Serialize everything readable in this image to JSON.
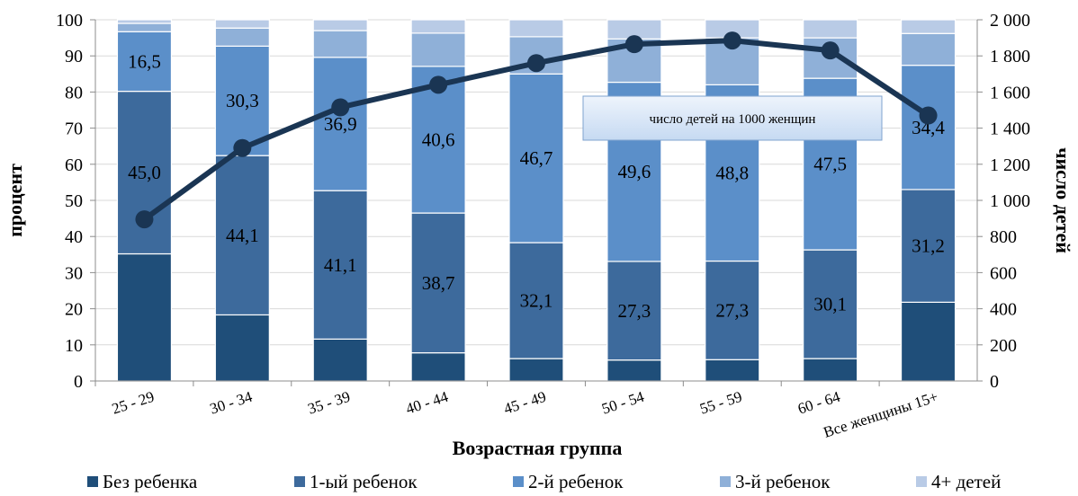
{
  "chart_data": {
    "type": "bar",
    "stacked": true,
    "categories": [
      "25 - 29",
      "30 - 34",
      "35 - 39",
      "40 - 44",
      "45 - 49",
      "50 - 54",
      "55 - 59",
      "60 - 64",
      "Все женщины 15+"
    ],
    "series": [
      {
        "name": "Без ребенка",
        "color": "#1f4e79",
        "values": [
          35.2,
          18.3,
          11.6,
          7.8,
          6.2,
          5.8,
          5.9,
          6.2,
          21.8
        ]
      },
      {
        "name": "1-ый ребенок",
        "color": "#3d6a9c",
        "values": [
          45.0,
          44.1,
          41.1,
          38.7,
          32.1,
          27.3,
          27.3,
          30.1,
          31.2
        ],
        "data_labels": [
          "45,0",
          "44,1",
          "41,1",
          "38,7",
          "32,1",
          "27,3",
          "27,3",
          "30,1",
          "31,2"
        ]
      },
      {
        "name": "2-й ребенок",
        "color": "#5b8fc9",
        "values": [
          16.5,
          30.3,
          36.9,
          40.6,
          46.7,
          49.6,
          48.8,
          47.5,
          34.4
        ],
        "data_labels": [
          "16,5",
          "30,3",
          "36,9",
          "40,6",
          "46,7",
          "49,6",
          "48,8",
          "47,5",
          "34,4"
        ]
      },
      {
        "name": "3-й ребенок",
        "color": "#8fb0d8",
        "values": [
          2.3,
          5.0,
          7.4,
          9.2,
          10.3,
          12.0,
          13.0,
          11.2,
          8.8
        ]
      },
      {
        "name": "4+ детей",
        "color": "#b9cbe6",
        "values": [
          1.0,
          2.3,
          3.0,
          3.7,
          4.7,
          5.3,
          5.0,
          5.0,
          3.8
        ]
      }
    ],
    "line": {
      "name": "число детей на 1000 женщин",
      "color": "#1a3553",
      "axis": "right",
      "values": [
        895,
        1290,
        1515,
        1640,
        1760,
        1865,
        1885,
        1830,
        1470
      ]
    },
    "xlabel": "Возрастная группа",
    "ylabel": "процент",
    "y2label": "число детей",
    "ylim": [
      0,
      100
    ],
    "y2lim": [
      0,
      2000
    ],
    "yticks": [
      "0",
      "10",
      "20",
      "30",
      "40",
      "50",
      "60",
      "70",
      "80",
      "90",
      "100"
    ],
    "y2ticks": [
      "0",
      "200",
      "400",
      "600",
      "800",
      "1 000",
      "1 200",
      "1 400",
      "1 600",
      "1 800",
      "2 000"
    ],
    "legend_position": "bottom",
    "grid": true
  }
}
